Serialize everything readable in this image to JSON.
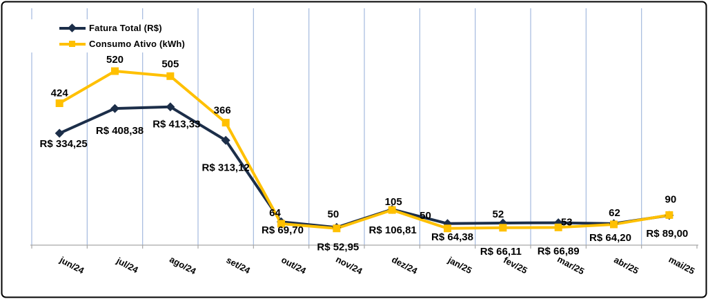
{
  "figure": {
    "background": "#ffffff",
    "border_color": "#000000"
  },
  "chart_data": {
    "type": "line",
    "title": "",
    "categories": [
      "jun/24",
      "jul/24",
      "ago/24",
      "set/24",
      "out/24",
      "nov/24",
      "dez/24",
      "jan/25",
      "fev/25",
      "mar/25",
      "abr/25",
      "mai/25"
    ],
    "series": [
      {
        "name": "Fatura Total (R$)",
        "color": "#1c2e49",
        "marker": "diamond",
        "label_position": "below",
        "values": [
          334.25,
          408.38,
          413.33,
          313.12,
          69.7,
          52.95,
          106.81,
          64.38,
          66.11,
          66.89,
          64.2,
          89.0
        ],
        "labels": [
          "R$ 334,25",
          "R$ 408,38",
          "R$ 413,33",
          "R$ 313,12",
          "R$ 69,70",
          "R$ 52,95",
          "R$ 106,81",
          "R$ 64,38",
          "R$ 66,11",
          "R$ 66,89",
          "R$ 64,20",
          "R$ 89,00"
        ]
      },
      {
        "name": "Consumo Ativo (kWh)",
        "color": "#ffc000",
        "marker": "square",
        "label_position": "above",
        "values": [
          424,
          520,
          505,
          366,
          64,
          50,
          105,
          50,
          52,
          53,
          62,
          90
        ],
        "labels": [
          "424",
          "520",
          "505",
          "366",
          "64",
          "50",
          "105",
          "50",
          "52",
          "53",
          "62",
          "90"
        ]
      }
    ],
    "ylim": [
      0,
      520
    ],
    "grid": "vertical-only",
    "gridline_color": "#a3b9de",
    "axis_line_color": "#a6a6a6",
    "data_label_color": "#000000",
    "legend_position": "top-left"
  }
}
